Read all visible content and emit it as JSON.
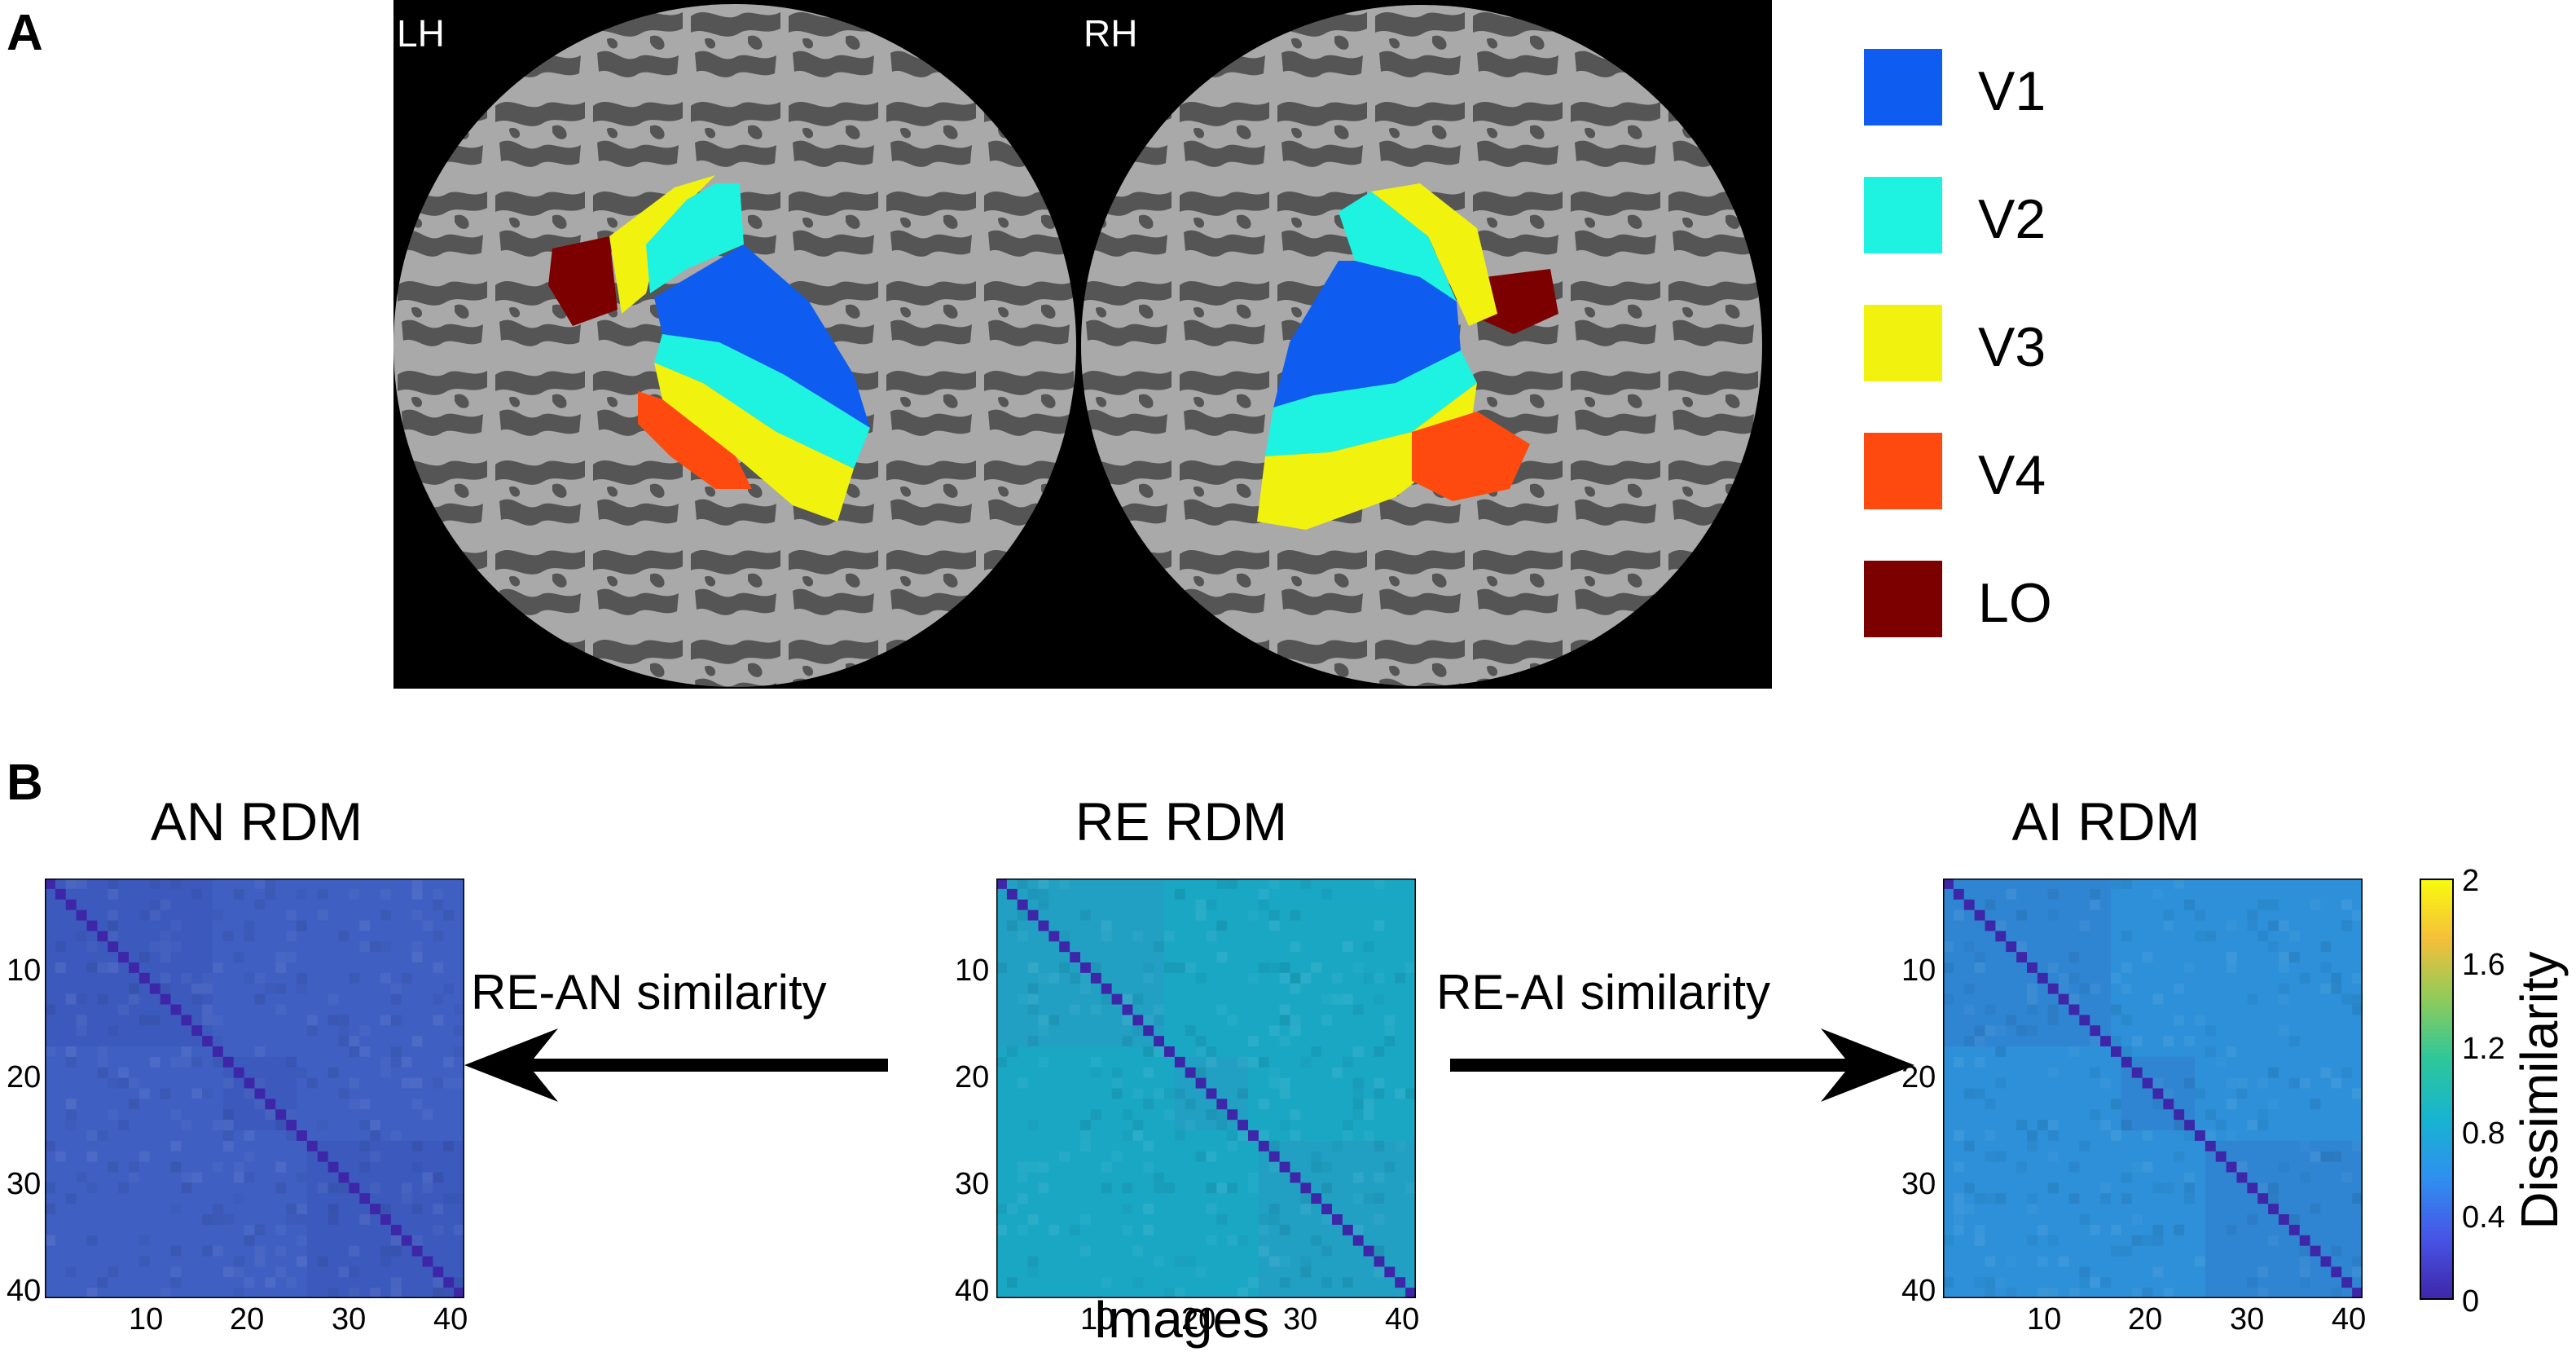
{
  "panels": {
    "a_label": "A",
    "b_label": "B"
  },
  "hemispheres": {
    "left": "LH",
    "right": "RH"
  },
  "legend": [
    {
      "label": "V1",
      "color": "#0f5cf0"
    },
    {
      "label": "V2",
      "color": "#1ef2e0"
    },
    {
      "label": "V3",
      "color": "#f2f20f"
    },
    {
      "label": "V4",
      "color": "#ff4a0f"
    },
    {
      "label": "LO",
      "color": "#7d0000"
    }
  ],
  "rdms": [
    {
      "id": "an",
      "title": "AN RDM",
      "base_color": "#3f5fc2",
      "block_color": "#3a55b8"
    },
    {
      "id": "re",
      "title": "RE RDM",
      "base_color": "#1aa7c4",
      "block_color": "#2a98c6"
    },
    {
      "id": "ai",
      "title": "AI RDM",
      "base_color": "#2d90d8",
      "block_color": "#3478cc"
    }
  ],
  "arrows": {
    "left_label": "RE-AN similarity",
    "right_label": "RE-AI similarity"
  },
  "x_axis_label": "Images",
  "y_ticks": [
    "10",
    "20",
    "30",
    "40"
  ],
  "x_ticks": [
    "10",
    "20",
    "30",
    "40"
  ],
  "colorbar": {
    "label": "Dissimilarity",
    "ticks": [
      "2",
      "1.6",
      "1.2",
      "0.8",
      "0.4",
      "0"
    ],
    "range": [
      0,
      2
    ],
    "colors": [
      "#3e26a8",
      "#4754e6",
      "#2f8ff0",
      "#17b4d0",
      "#2dc79a",
      "#8fcb5a",
      "#f4bf3a",
      "#f9fb0e"
    ]
  },
  "chart_data": [
    {
      "type": "heatmap",
      "title": "AN RDM",
      "size": 40,
      "xlim": [
        1,
        40
      ],
      "ylim": [
        1,
        40
      ],
      "zlim": [
        0,
        2
      ],
      "diagonal": 0,
      "typical_value": 0.55
    },
    {
      "type": "heatmap",
      "title": "RE RDM",
      "size": 40,
      "xlim": [
        1,
        40
      ],
      "ylim": [
        1,
        40
      ],
      "zlim": [
        0,
        2
      ],
      "diagonal": 0,
      "typical_value": 0.95,
      "xlabel": "Images"
    },
    {
      "type": "heatmap",
      "title": "AI RDM",
      "size": 40,
      "xlim": [
        1,
        40
      ],
      "ylim": [
        1,
        40
      ],
      "zlim": [
        0,
        2
      ],
      "diagonal": 0,
      "typical_value": 0.8
    }
  ]
}
